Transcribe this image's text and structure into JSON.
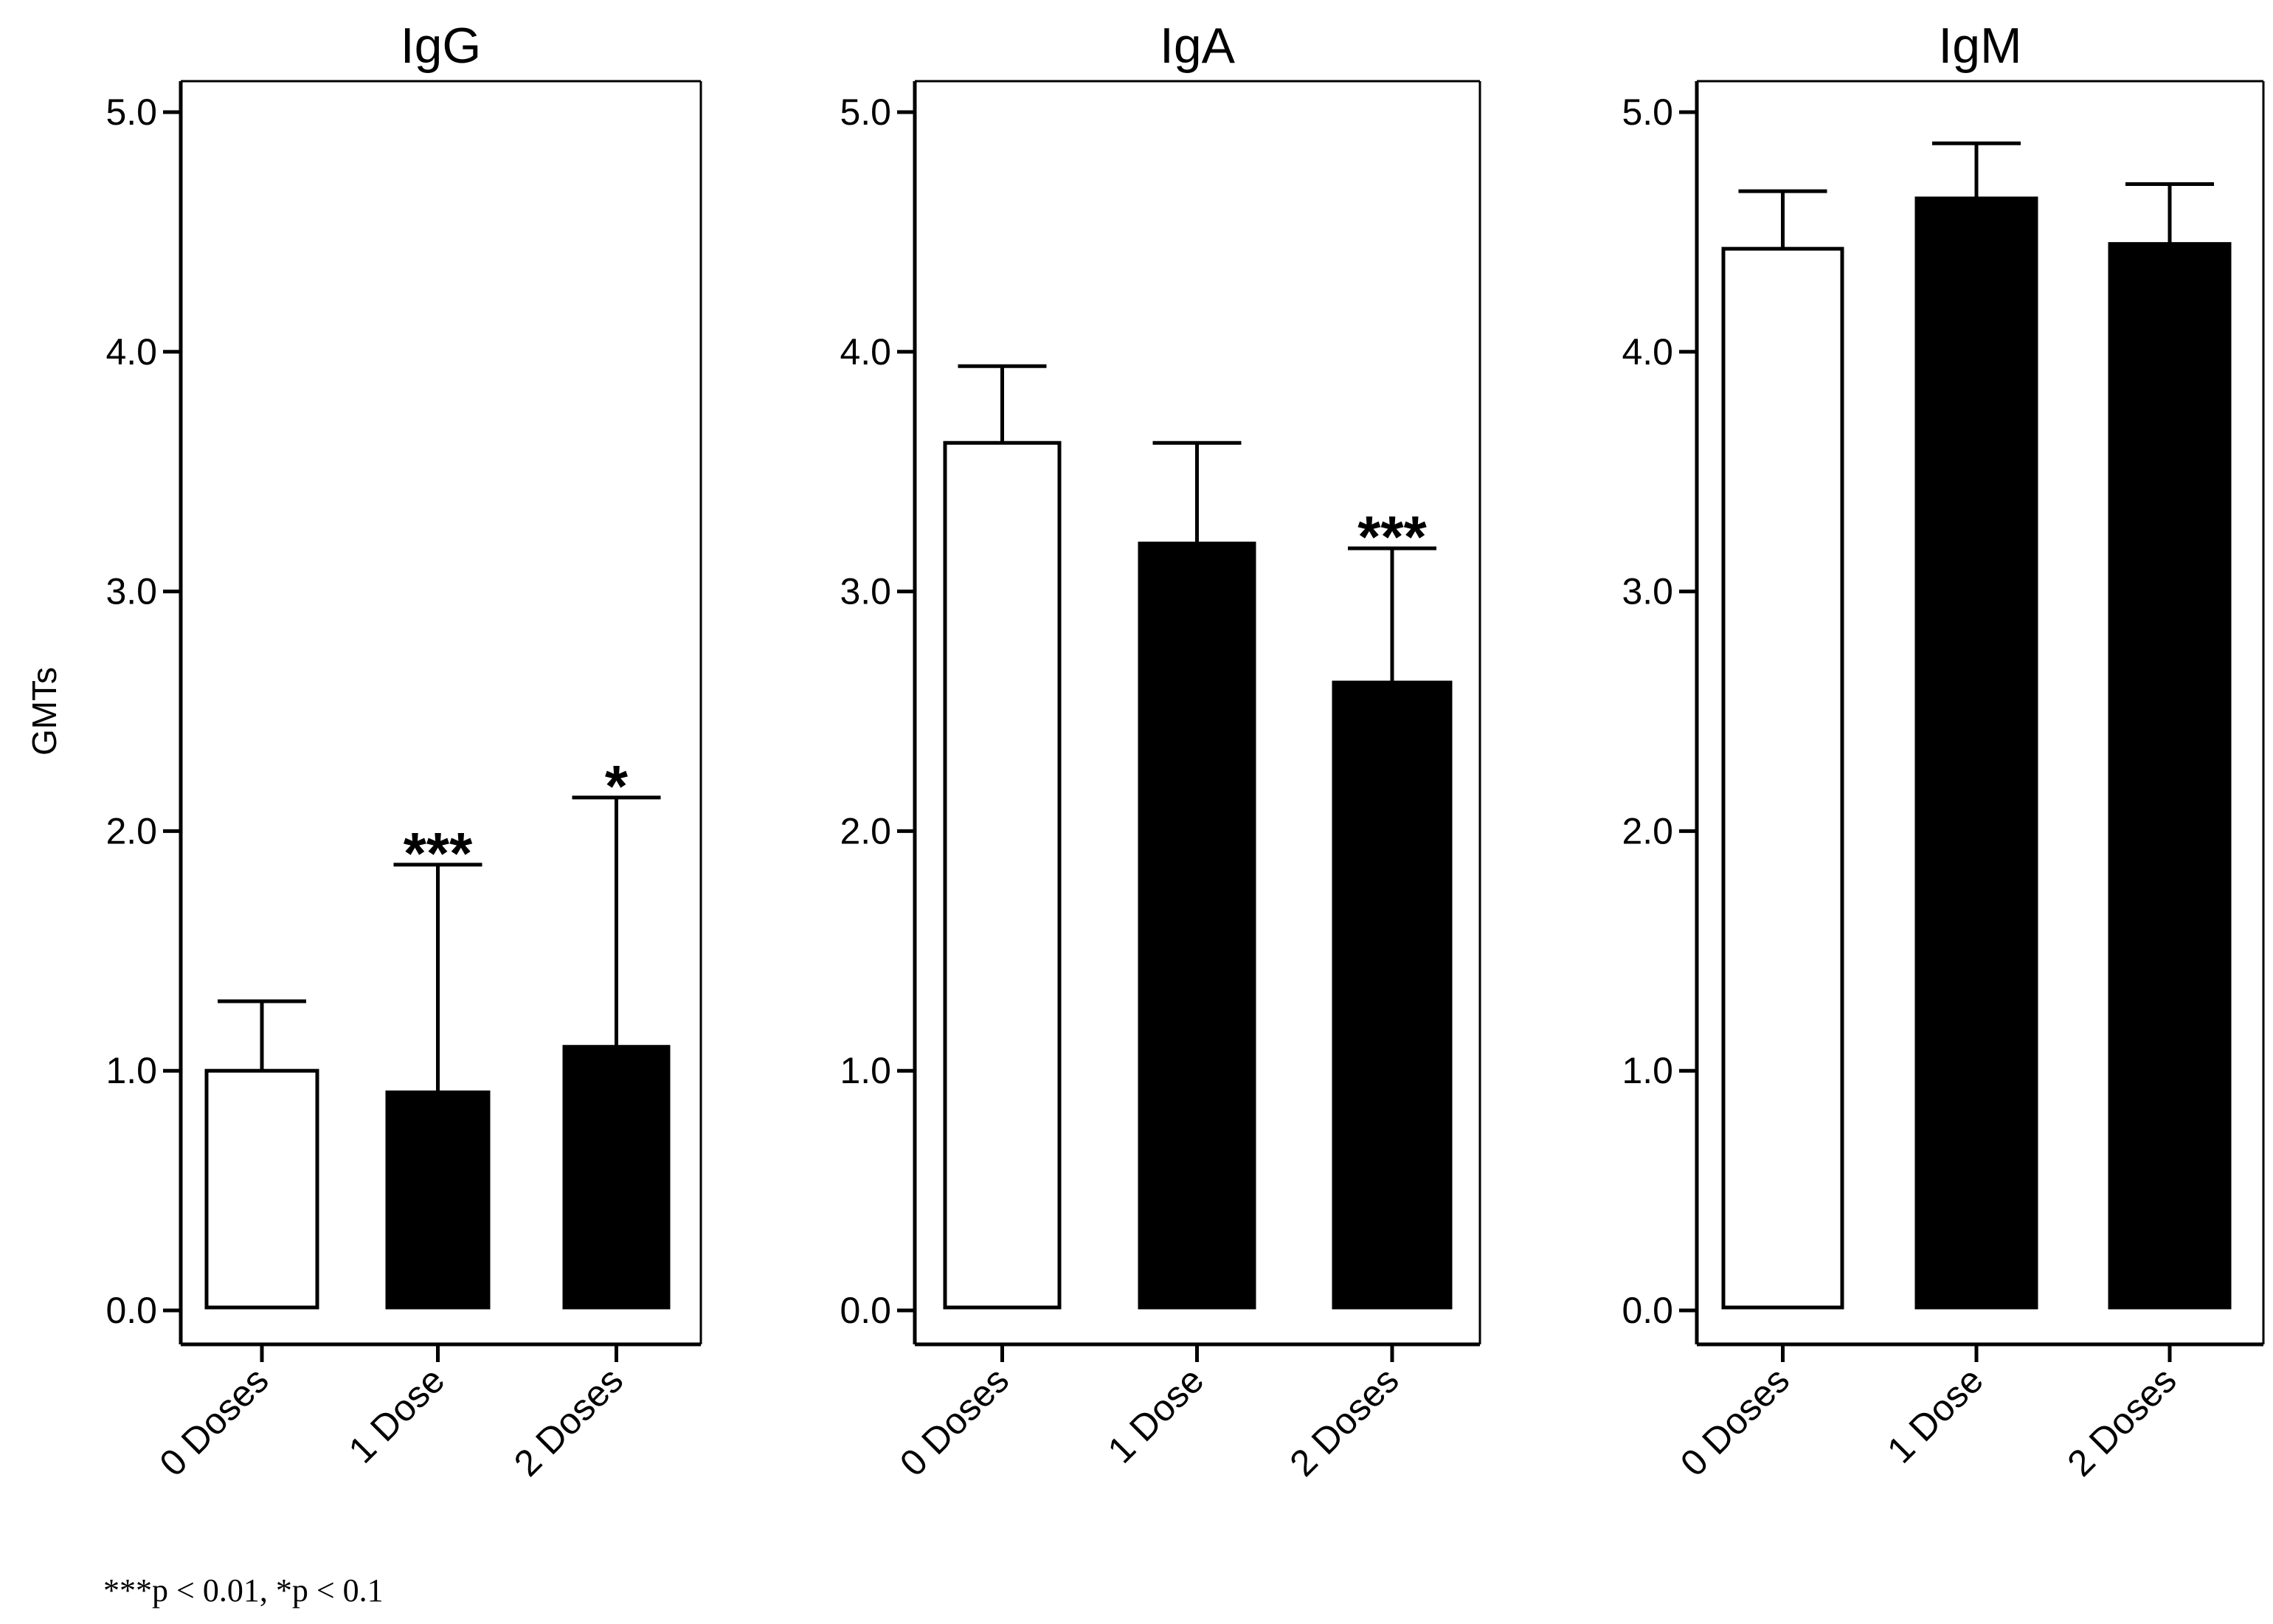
{
  "chart_data": [
    {
      "type": "bar",
      "title": "IgG",
      "ylabel": "GMTs",
      "ylim": [
        0,
        5
      ],
      "yticks": [
        "0.0",
        "1.0",
        "2.0",
        "3.0",
        "4.0",
        "5.0"
      ],
      "categories": [
        "0 Doses",
        "1 Dose",
        "2 Doses"
      ],
      "values": [
        1.0,
        0.91,
        1.1
      ],
      "error_upper": [
        1.29,
        1.86,
        2.14
      ],
      "significance": [
        "",
        "***",
        "*"
      ],
      "bar_fills": [
        "#ffffff",
        "#000000",
        "#000000"
      ]
    },
    {
      "type": "bar",
      "title": "IgA",
      "ylabel": "",
      "ylim": [
        0,
        5
      ],
      "yticks": [
        "0.0",
        "1.0",
        "2.0",
        "3.0",
        "4.0",
        "5.0"
      ],
      "categories": [
        "0 Doses",
        "1 Dose",
        "2 Doses"
      ],
      "values": [
        3.62,
        3.2,
        2.62
      ],
      "error_upper": [
        3.94,
        3.62,
        3.18
      ],
      "significance": [
        "",
        "",
        "***"
      ],
      "bar_fills": [
        "#ffffff",
        "#000000",
        "#000000"
      ]
    },
    {
      "type": "bar",
      "title": "IgM",
      "ylabel": "",
      "ylim": [
        0,
        5
      ],
      "yticks": [
        "0.0",
        "1.0",
        "2.0",
        "3.0",
        "4.0",
        "5.0"
      ],
      "categories": [
        "0 Doses",
        "1 Dose",
        "2 Doses"
      ],
      "values": [
        4.43,
        4.64,
        4.45
      ],
      "error_upper": [
        4.67,
        4.87,
        4.7
      ],
      "significance": [
        "",
        "",
        ""
      ],
      "bar_fills": [
        "#ffffff",
        "#000000",
        "#000000"
      ]
    }
  ],
  "footnote": "***p < 0.01, *p < 0.1",
  "colors": {
    "axis": "#000000",
    "background": "#ffffff"
  }
}
